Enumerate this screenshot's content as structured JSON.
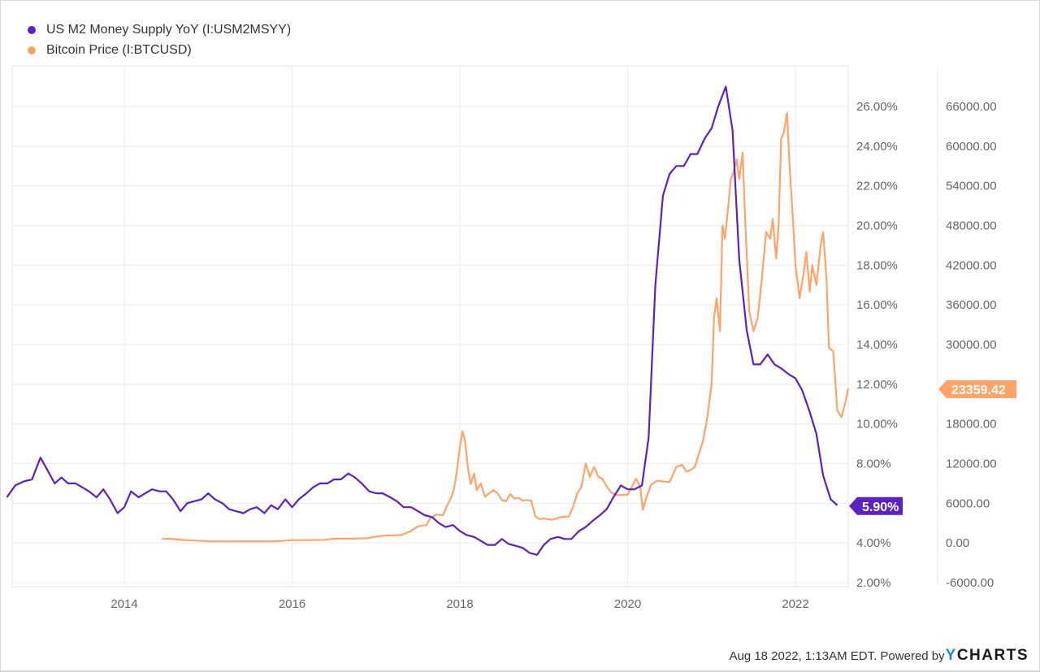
{
  "legend": [
    {
      "label": "US M2 Money Supply YoY (I:USM2MSYY)",
      "color": "#5b21c4"
    },
    {
      "label": "Bitcoin Price (I:BTCUSD)",
      "color": "#ffa366"
    }
  ],
  "footer": {
    "timestamp": "Aug 18 2022, 1:13AM EDT.",
    "powered_by": "Powered by",
    "brand_y": "Y",
    "brand_rest": "CHARTS"
  },
  "badges": {
    "m2_last": "5.90%",
    "btc_last": "23359.42"
  },
  "colors": {
    "m2": "#5b21c4",
    "btc": "#ffa366",
    "grid": "#ececec",
    "axis_text": "#666666"
  },
  "chart_data": {
    "type": "line",
    "title": "",
    "xlabel": "",
    "x_ticks": [
      "2014",
      "2016",
      "2018",
      "2020",
      "2022"
    ],
    "xlim": [
      2012.6,
      2022.65
    ],
    "grid": true,
    "legend_position": "top-left",
    "y_left": {
      "label": "",
      "ticks": [
        "26.00%",
        "24.00%",
        "22.00%",
        "20.00%",
        "18.00%",
        "16.00%",
        "14.00%",
        "12.00%",
        "10.00%",
        "8.00%",
        "6.00%",
        "4.00%",
        "2.00%"
      ],
      "ylim": [
        2,
        26
      ]
    },
    "y_right": {
      "label": "",
      "ticks": [
        "66000.00",
        "60000.00",
        "54000.00",
        "48000.00",
        "42000.00",
        "36000.00",
        "30000.00",
        "24000.00",
        "18000.00",
        "12000.00",
        "6000.00",
        "0.00",
        "-6000.00"
      ],
      "ylim": [
        -6000,
        66000
      ]
    },
    "series": [
      {
        "name": "US M2 Money Supply YoY (I:USM2MSYY)",
        "axis": "left",
        "unit": "%",
        "last_value": 5.9,
        "x": [
          2012.6,
          2012.7,
          2012.8,
          2012.9,
          2013.0,
          2013.08,
          2013.17,
          2013.25,
          2013.33,
          2013.42,
          2013.5,
          2013.58,
          2013.67,
          2013.75,
          2013.83,
          2013.92,
          2014.0,
          2014.08,
          2014.17,
          2014.25,
          2014.33,
          2014.42,
          2014.5,
          2014.58,
          2014.67,
          2014.75,
          2014.83,
          2014.92,
          2015.0,
          2015.08,
          2015.17,
          2015.25,
          2015.33,
          2015.42,
          2015.5,
          2015.58,
          2015.67,
          2015.75,
          2015.83,
          2015.92,
          2016.0,
          2016.08,
          2016.17,
          2016.25,
          2016.33,
          2016.42,
          2016.5,
          2016.58,
          2016.67,
          2016.75,
          2016.83,
          2016.92,
          2017.0,
          2017.08,
          2017.17,
          2017.25,
          2017.33,
          2017.42,
          2017.5,
          2017.58,
          2017.67,
          2017.75,
          2017.83,
          2017.92,
          2018.0,
          2018.08,
          2018.17,
          2018.25,
          2018.33,
          2018.42,
          2018.5,
          2018.58,
          2018.67,
          2018.75,
          2018.83,
          2018.92,
          2019.0,
          2019.08,
          2019.17,
          2019.25,
          2019.33,
          2019.42,
          2019.5,
          2019.58,
          2019.67,
          2019.75,
          2019.83,
          2019.92,
          2020.0,
          2020.08,
          2020.17,
          2020.25,
          2020.33,
          2020.42,
          2020.5,
          2020.58,
          2020.67,
          2020.75,
          2020.83,
          2020.92,
          2021.0,
          2021.08,
          2021.17,
          2021.25,
          2021.33,
          2021.42,
          2021.5,
          2021.58,
          2021.67,
          2021.75,
          2021.83,
          2021.92,
          2022.0,
          2022.08,
          2022.17,
          2022.25,
          2022.33,
          2022.42,
          2022.5
        ],
        "y": [
          6.3,
          6.9,
          7.1,
          7.2,
          8.3,
          7.7,
          7.0,
          7.3,
          7.0,
          7.0,
          6.8,
          6.6,
          6.3,
          6.7,
          6.2,
          5.5,
          5.8,
          6.6,
          6.3,
          6.5,
          6.7,
          6.6,
          6.6,
          6.2,
          5.6,
          6.0,
          6.1,
          6.2,
          6.5,
          6.2,
          6.0,
          5.7,
          5.6,
          5.5,
          5.7,
          5.8,
          5.5,
          5.9,
          5.7,
          6.2,
          5.8,
          6.2,
          6.5,
          6.8,
          7.0,
          7.0,
          7.2,
          7.2,
          7.5,
          7.3,
          7.0,
          6.6,
          6.5,
          6.5,
          6.3,
          6.1,
          5.8,
          5.8,
          5.6,
          5.4,
          5.3,
          5.0,
          4.8,
          4.9,
          4.6,
          4.4,
          4.3,
          4.1,
          3.9,
          3.9,
          4.2,
          3.95,
          3.85,
          3.75,
          3.5,
          3.4,
          3.9,
          4.2,
          4.3,
          4.2,
          4.2,
          4.6,
          4.8,
          5.1,
          5.4,
          5.7,
          6.3,
          6.9,
          6.7,
          6.7,
          6.9,
          9.3,
          17.0,
          21.5,
          22.6,
          23.0,
          23.0,
          23.6,
          23.6,
          24.4,
          24.9,
          26.0,
          27.0,
          24.8,
          18.3,
          14.7,
          13.0,
          13.0,
          13.5,
          13.0,
          12.8,
          12.5,
          12.3,
          11.7,
          10.6,
          9.5,
          7.4,
          6.2,
          5.9
        ]
      },
      {
        "name": "Bitcoin Price (I:BTCUSD)",
        "axis": "right",
        "unit": "USD",
        "last_value": 23359.42,
        "x": [
          2014.45,
          2014.55,
          2014.7,
          2014.85,
          2015.0,
          2015.2,
          2015.4,
          2015.6,
          2015.8,
          2016.0,
          2016.2,
          2016.4,
          2016.5,
          2016.7,
          2016.9,
          2017.0,
          2017.1,
          2017.2,
          2017.3,
          2017.4,
          2017.5,
          2017.6,
          2017.65,
          2017.72,
          2017.8,
          2017.85,
          2017.9,
          2017.93,
          2017.96,
          2018.0,
          2018.03,
          2018.06,
          2018.1,
          2018.13,
          2018.17,
          2018.2,
          2018.25,
          2018.3,
          2018.35,
          2018.4,
          2018.45,
          2018.5,
          2018.55,
          2018.6,
          2018.65,
          2018.7,
          2018.75,
          2018.8,
          2018.85,
          2018.9,
          2018.95,
          2019.0,
          2019.1,
          2019.2,
          2019.3,
          2019.35,
          2019.4,
          2019.45,
          2019.5,
          2019.55,
          2019.6,
          2019.65,
          2019.7,
          2019.75,
          2019.8,
          2019.85,
          2019.9,
          2019.95,
          2020.0,
          2020.05,
          2020.1,
          2020.15,
          2020.18,
          2020.22,
          2020.28,
          2020.35,
          2020.42,
          2020.5,
          2020.58,
          2020.65,
          2020.7,
          2020.75,
          2020.8,
          2020.85,
          2020.9,
          2020.95,
          2021.0,
          2021.03,
          2021.06,
          2021.1,
          2021.13,
          2021.16,
          2021.2,
          2021.23,
          2021.26,
          2021.3,
          2021.33,
          2021.37,
          2021.4,
          2021.45,
          2021.5,
          2021.55,
          2021.6,
          2021.65,
          2021.7,
          2021.73,
          2021.77,
          2021.8,
          2021.83,
          2021.86,
          2021.9,
          2021.93,
          2021.97,
          2022.0,
          2022.05,
          2022.1,
          2022.13,
          2022.17,
          2022.2,
          2022.25,
          2022.3,
          2022.33,
          2022.37,
          2022.4,
          2022.45,
          2022.5,
          2022.55,
          2022.6,
          2022.63
        ],
        "y": [
          600,
          650,
          450,
          350,
          250,
          230,
          240,
          240,
          250,
          430,
          420,
          480,
          650,
          640,
          720,
          950,
          1100,
          1150,
          1200,
          1700,
          2500,
          2700,
          3800,
          4300,
          4200,
          5700,
          7000,
          8200,
          10500,
          14500,
          16900,
          15500,
          11000,
          8900,
          10500,
          8000,
          9000,
          7000,
          7500,
          8000,
          7500,
          6500,
          6300,
          7400,
          6700,
          6800,
          6400,
          6500,
          6400,
          4000,
          3600,
          3700,
          3500,
          3900,
          4000,
          5500,
          7500,
          8500,
          12000,
          10000,
          11500,
          10000,
          9700,
          8500,
          7700,
          7300,
          7200,
          7300,
          7300,
          8500,
          9700,
          8500,
          5000,
          6800,
          8800,
          9400,
          9300,
          9200,
          11500,
          11800,
          10800,
          11000,
          11500,
          13500,
          15500,
          19000,
          24000,
          34000,
          37000,
          32000,
          48000,
          46000,
          51000,
          55000,
          56000,
          58000,
          55000,
          59000,
          49000,
          35000,
          32000,
          34000,
          40000,
          47000,
          46000,
          49000,
          43000,
          48000,
          61000,
          62000,
          65000,
          57000,
          49000,
          42000,
          37000,
          41000,
          44000,
          38000,
          42000,
          39000,
          45000,
          47000,
          40000,
          29500,
          29000,
          20000,
          19000,
          21500,
          23359
        ]
      }
    ]
  }
}
